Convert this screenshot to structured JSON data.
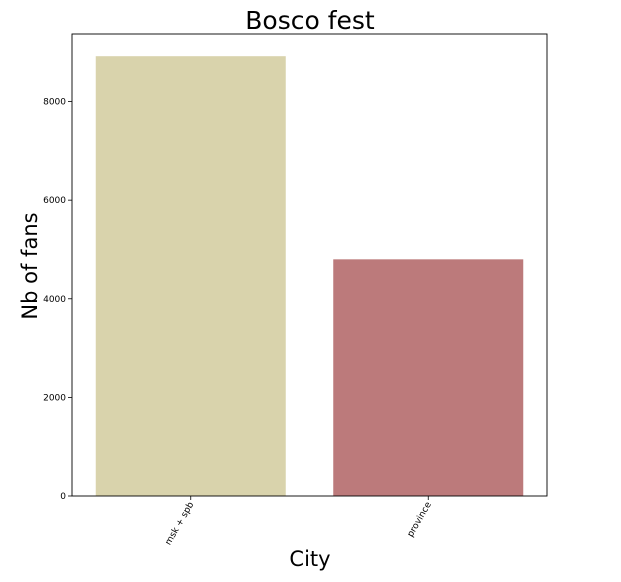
{
  "chart_data": {
    "type": "bar",
    "title": "Bosco fest",
    "xlabel": "City",
    "ylabel": "Nb of fans",
    "categories": [
      "msk + spb",
      "province"
    ],
    "values": [
      8920,
      4800
    ],
    "colors": [
      "#d9d3ac",
      "#bc7a7b"
    ],
    "ylim": [
      0,
      9370
    ],
    "yticks": [
      0,
      2000,
      4000,
      6000,
      8000
    ],
    "ytick_labels": [
      "0",
      "2000",
      "4000",
      "6000",
      "8000"
    ],
    "grid": false,
    "legend": "none",
    "xtick_rotation": -60
  }
}
